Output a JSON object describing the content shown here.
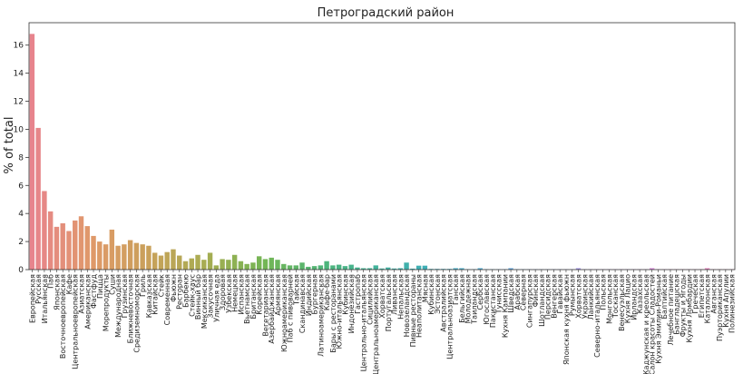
{
  "chart_data": {
    "type": "bar",
    "title": "Петроградский район",
    "xlabel": "",
    "ylabel": "% of total",
    "ylim": [
      0,
      17.6
    ],
    "yticks": [
      0,
      2,
      4,
      6,
      8,
      10,
      12,
      14,
      16
    ],
    "grid": false,
    "legend": "none",
    "categories": [
      "Европейская",
      "Русская",
      "Итальянская",
      "Паб",
      "Японская",
      "Восточноевропейская",
      "Кафе",
      "Центральноевропейская",
      "Азиатская",
      "Американская",
      "Фастфуд",
      "Пицца",
      "Морепродукты",
      "Суши",
      "Международная",
      "Грузинская",
      "Ближневосточная",
      "Средиземноморская",
      "Гриль",
      "Кавказская",
      "Китайская",
      "Стейк",
      "Современная",
      "Фьюжн",
      "Ресторан",
      "Барбекю",
      "Стейк-хаус",
      "Винный бар",
      "Мексиканская",
      "Закусочная",
      "Уличная еда",
      "Здоровая",
      "Узбекская",
      "Немецкая",
      "Испанская",
      "Вьетнамская",
      "Британская",
      "Корейская",
      "Вегетарианская",
      "Азербайджанская",
      "Армянская",
      "Южноамериканская",
      "Паб с пивоварней",
      "Тайская",
      "Скандинавская",
      "Индийская",
      "Бургерная",
      "Латиноамериканская",
      "Кафе-бар",
      "Бары с ресторанами",
      "Южно-итальянская",
      "Кубинская",
      "Индонезийская",
      "Гастропаб",
      "Центрально-итальянская",
      "Сицилийская",
      "Центральноамериканская",
      "Хорватская",
      "Португальская",
      "Ливанская",
      "Непальская",
      "Новозеландская",
      "Пивные рестораны",
      "Неаполитанская",
      "Мясная",
      "Кубинская",
      "Эстонская",
      "Австралийская",
      "Центральноазиатская",
      "Ганская",
      "Бельгийская",
      "Молодежная",
      "Таиландская",
      "Сербская",
      "Югославская",
      "Пакистанская",
      "Тунисская",
      "Кухня Кампании",
      "Шведская",
      "Арабская",
      "Северная",
      "Сингапурская",
      "Финская",
      "Шотландская",
      "Персидская",
      "Венгерская",
      "Гавайская",
      "Японская кухня фьюжн",
      "Румынская",
      "Хорватская",
      "Украинская",
      "Ланкийская",
      "Северно-итальянская",
      "Польская",
      "Монгольская",
      "Тосканская",
      "Венесуэльская",
      "Кухня Лацио",
      "Ирландская",
      "Казахская",
      "Каджунская и креольская",
      "Салон красоты Сладостей",
      "Кухня Эмилии-Романьи",
      "Балтийская",
      "Лечебное питание",
      "Бангладешская",
      "Фрукты и Ягоды",
      "Кухня Ломбардии",
      "Греческая",
      "Египетская",
      "Каталонская",
      "Авганская",
      "Пуэрториканская",
      "Кухня Апулии",
      "Полинезийская"
    ],
    "values": [
      16.8,
      10.1,
      5.6,
      4.15,
      3.05,
      3.3,
      2.75,
      3.5,
      3.8,
      3.1,
      2.4,
      2.0,
      1.8,
      2.85,
      1.7,
      1.8,
      2.1,
      1.9,
      1.8,
      1.7,
      1.2,
      1.0,
      1.25,
      1.45,
      1.0,
      0.6,
      0.8,
      1.05,
      0.7,
      1.2,
      0.3,
      0.75,
      0.7,
      1.05,
      0.6,
      0.4,
      0.5,
      0.95,
      0.75,
      0.85,
      0.7,
      0.4,
      0.3,
      0.3,
      0.5,
      0.2,
      0.25,
      0.3,
      0.6,
      0.3,
      0.35,
      0.25,
      0.35,
      0.15,
      0.1,
      0.1,
      0.3,
      0.08,
      0.15,
      0.08,
      0.1,
      0.5,
      0.07,
      0.28,
      0.28,
      0.05,
      0.05,
      0.05,
      0.05,
      0.1,
      0.1,
      0.03,
      0.03,
      0.1,
      0.03,
      0.03,
      0.03,
      0.03,
      0.1,
      0.03,
      0.03,
      0.03,
      0.03,
      0.03,
      0.03,
      0.03,
      0.03,
      0.03,
      0.03,
      0.1,
      0.03,
      0.03,
      0.03,
      0.03,
      0.03,
      0.03,
      0.03,
      0.03,
      0.03,
      0.03,
      0.03,
      0.1,
      0.03,
      0.03,
      0.03,
      0.03,
      0.03,
      0.03,
      0.03,
      0.03,
      0.1,
      0.03,
      0.03,
      0.03,
      0.03
    ],
    "palette": [
      "#e7848d",
      "#e0996a",
      "#c9a15a",
      "#a6ad52",
      "#73b655",
      "#4fb57a",
      "#41b39f",
      "#3faebe",
      "#52a4d6",
      "#8c95e0",
      "#bd85e0",
      "#dc7fcf",
      "#e681ae"
    ]
  }
}
